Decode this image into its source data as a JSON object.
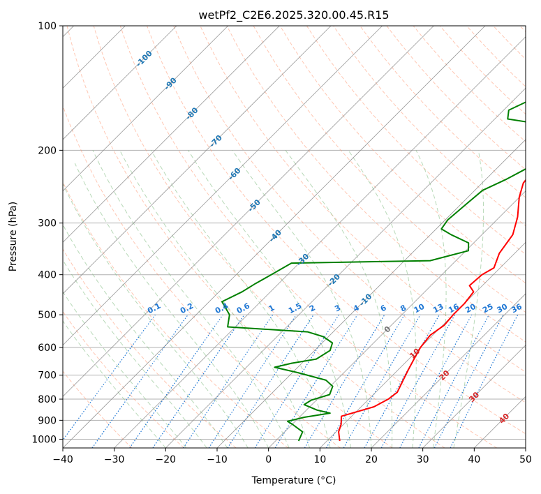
{
  "chart_data": {
    "type": "line",
    "title": "wetPf2_C2E6.2025.320.00.45.R15",
    "xlabel": "Temperature (°C)",
    "ylabel": "Pressure (hPa)",
    "xlim": [
      -40,
      50
    ],
    "ylim": [
      1050,
      100
    ],
    "y_scale": "log",
    "grid": true,
    "x_ticks": [
      "−40",
      "−30",
      "−20",
      "−10",
      "0",
      "10",
      "20",
      "30",
      "40",
      "50"
    ],
    "x_tick_values": [
      -40,
      -30,
      -20,
      -10,
      0,
      10,
      20,
      30,
      40,
      50
    ],
    "y_ticks": [
      "100",
      "200",
      "300",
      "400",
      "500",
      "600",
      "700",
      "800",
      "900",
      "1000"
    ],
    "y_tick_values": [
      100,
      200,
      300,
      400,
      500,
      600,
      700,
      800,
      900,
      1000
    ],
    "colors": {
      "temperature": "#ff0000",
      "dewpoint": "#008000",
      "isotherm": "#888888",
      "dry_adiabat": "#ff9975",
      "moist_adiabat": "#88c088",
      "mixing_ratio": "#1f77d4",
      "iso_label_blue": "#1f77b4",
      "iso_label_red": "#d62728"
    },
    "series": [
      {
        "kind": "temperature",
        "points": [
          [
            12.5,
            1010
          ],
          [
            10.5,
            960
          ],
          [
            9.5,
            920
          ],
          [
            8.0,
            880
          ],
          [
            10.5,
            855
          ],
          [
            12.5,
            835
          ],
          [
            13.8,
            800
          ],
          [
            14.2,
            770
          ],
          [
            13.0,
            720
          ],
          [
            12.0,
            680
          ],
          [
            11.0,
            640
          ],
          [
            10.0,
            600
          ],
          [
            9.5,
            560
          ],
          [
            10.3,
            530
          ],
          [
            10.0,
            500
          ],
          [
            10.0,
            470
          ],
          [
            9.5,
            440
          ],
          [
            7.5,
            425
          ],
          [
            7.8,
            400
          ],
          [
            8.8,
            385
          ],
          [
            7.0,
            355
          ],
          [
            6.0,
            320
          ],
          [
            3.5,
            290
          ],
          [
            0.0,
            260
          ],
          [
            -2.0,
            240
          ],
          [
            -2.4,
            225
          ],
          [
            -1.5,
            210
          ],
          [
            0.3,
            195
          ],
          [
            1.0,
            180
          ],
          [
            2.5,
            170
          ],
          [
            5.0,
            160
          ],
          [
            9.0,
            150
          ],
          [
            10.3,
            140
          ],
          [
            11.2,
            130
          ],
          [
            13.3,
            120
          ],
          [
            15.8,
            110
          ],
          [
            19.0,
            100
          ]
        ]
      },
      {
        "kind": "dewpoint",
        "points": [
          [
            4.5,
            1010
          ],
          [
            3.5,
            960
          ],
          [
            0.0,
            920
          ],
          [
            -1.5,
            905
          ],
          [
            1.0,
            885
          ],
          [
            5.2,
            865
          ],
          [
            2.0,
            850
          ],
          [
            -1.5,
            825
          ],
          [
            -1.0,
            805
          ],
          [
            1.5,
            780
          ],
          [
            0.5,
            745
          ],
          [
            -2.0,
            720
          ],
          [
            -9.0,
            690
          ],
          [
            -14.5,
            670
          ],
          [
            -12.0,
            655
          ],
          [
            -8.0,
            640
          ],
          [
            -7.0,
            610
          ],
          [
            -8.0,
            585
          ],
          [
            -11.0,
            565
          ],
          [
            -15.0,
            550
          ],
          [
            -31.5,
            535
          ],
          [
            -33.5,
            500
          ],
          [
            -37.5,
            465
          ],
          [
            -35.5,
            440
          ],
          [
            -34.5,
            420
          ],
          [
            -33.5,
            405
          ],
          [
            -31.5,
            375
          ],
          [
            -5.0,
            370
          ],
          [
            0.5,
            350
          ],
          [
            -1.0,
            335
          ],
          [
            -6.0,
            320
          ],
          [
            -9.0,
            310
          ],
          [
            -9.5,
            295
          ],
          [
            -9.0,
            270
          ],
          [
            -8.5,
            250
          ],
          [
            -6.0,
            235
          ],
          [
            -4.0,
            220
          ],
          [
            -4.5,
            205
          ],
          [
            -3.8,
            190
          ],
          [
            -6.5,
            178
          ],
          [
            -11.5,
            172
          ],
          [
            -17.5,
            168
          ],
          [
            -19.0,
            160
          ],
          [
            -16.5,
            150
          ],
          [
            -11.5,
            140
          ],
          [
            -9.0,
            130
          ],
          [
            -7.0,
            120
          ],
          [
            -4.5,
            110
          ],
          [
            -1.0,
            100
          ]
        ]
      }
    ],
    "isotherm_labels": [
      "-100",
      "-90",
      "-80",
      "-70",
      "-60",
      "-50",
      "-40",
      "-30",
      "-20",
      "-10",
      "0",
      "10",
      "20",
      "30",
      "40"
    ],
    "isotherm_label_values": [
      -100,
      -90,
      -80,
      -70,
      -60,
      -50,
      -40,
      -30,
      -20,
      -10,
      0,
      10,
      20,
      30,
      40
    ],
    "mixing_ratio_labels": [
      "0.1",
      "0.2",
      "0.4",
      "0.6",
      "1",
      "1.5",
      "2",
      "3",
      "4",
      "6",
      "8",
      "10",
      "13",
      "16",
      "20",
      "25",
      "30",
      "36"
    ],
    "mixing_ratio_values": [
      0.1,
      0.2,
      0.4,
      0.6,
      1,
      1.5,
      2,
      3,
      4,
      6,
      8,
      10,
      13,
      16,
      20,
      25,
      30,
      36
    ]
  }
}
